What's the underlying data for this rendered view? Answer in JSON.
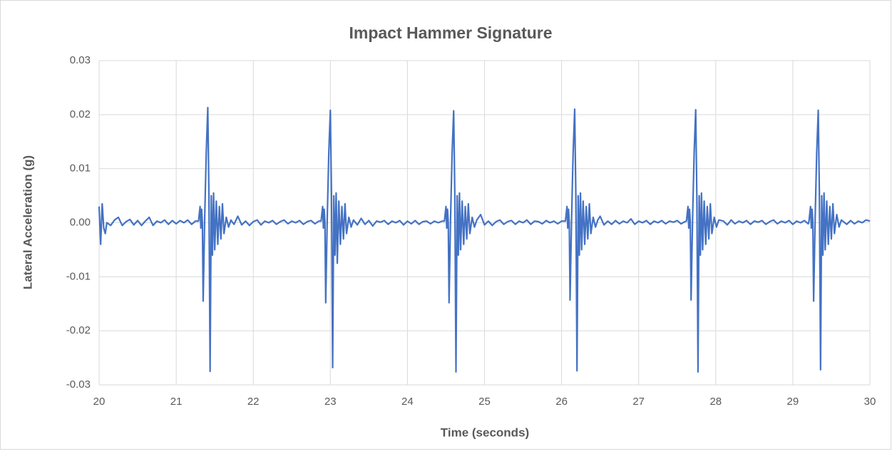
{
  "chart_data": {
    "type": "line",
    "title": "Impact Hammer Signature",
    "x_label": "Time (seconds)",
    "y_label": "Lateral Acceleration (g)",
    "xlim": [
      20,
      30
    ],
    "xticks": [
      20,
      21,
      22,
      23,
      24,
      25,
      26,
      27,
      28,
      29,
      30
    ],
    "ylim": [
      -0.03,
      0.03
    ],
    "yticks": [
      -0.03,
      -0.02,
      -0.01,
      {
        "value": 0,
        "label": "0.00"
      },
      0.01,
      0.02,
      0.03
    ],
    "grid": true,
    "color": "#4472c4",
    "x": [
      20.0,
      20.02,
      20.04,
      20.06,
      20.08,
      20.1,
      20.15,
      20.2,
      20.25,
      20.3,
      20.35,
      20.4,
      20.45,
      20.5,
      20.55,
      20.6,
      20.65,
      20.7,
      20.75,
      20.8,
      20.85,
      20.9,
      20.95,
      21.0,
      21.05,
      21.1,
      21.15,
      21.2,
      21.25,
      21.29,
      21.31,
      21.32,
      21.33,
      21.34,
      21.35,
      21.37,
      21.39,
      21.41,
      21.425,
      21.44,
      21.455,
      21.47,
      21.485,
      21.5,
      21.52,
      21.54,
      21.56,
      21.58,
      21.6,
      21.62,
      21.65,
      21.68,
      21.71,
      21.75,
      21.8,
      21.85,
      21.9,
      21.95,
      22.0,
      22.05,
      22.1,
      22.15,
      22.2,
      22.25,
      22.3,
      22.35,
      22.4,
      22.45,
      22.5,
      22.55,
      22.6,
      22.65,
      22.7,
      22.75,
      22.8,
      22.85,
      22.88,
      22.9,
      22.91,
      22.92,
      22.93,
      22.94,
      22.96,
      22.98,
      23.0,
      23.015,
      23.03,
      23.045,
      23.06,
      23.075,
      23.09,
      23.11,
      23.13,
      23.15,
      23.17,
      23.19,
      23.21,
      23.24,
      23.27,
      23.3,
      23.35,
      23.4,
      23.45,
      23.5,
      23.55,
      23.6,
      23.65,
      23.7,
      23.75,
      23.8,
      23.85,
      23.9,
      23.95,
      24.0,
      24.05,
      24.1,
      24.15,
      24.2,
      24.25,
      24.3,
      24.35,
      24.4,
      24.45,
      24.48,
      24.5,
      24.51,
      24.52,
      24.53,
      24.54,
      24.56,
      24.58,
      24.6,
      24.615,
      24.63,
      24.645,
      24.66,
      24.675,
      24.69,
      24.71,
      24.73,
      24.75,
      24.77,
      24.79,
      24.81,
      24.84,
      24.87,
      24.9,
      24.95,
      25.0,
      25.05,
      25.1,
      25.15,
      25.2,
      25.25,
      25.3,
      25.35,
      25.4,
      25.45,
      25.5,
      25.55,
      25.6,
      25.65,
      25.7,
      25.75,
      25.8,
      25.85,
      25.9,
      25.95,
      26.0,
      26.05,
      26.07,
      26.08,
      26.09,
      26.1,
      26.11,
      26.13,
      26.15,
      26.17,
      26.185,
      26.2,
      26.215,
      26.23,
      26.245,
      26.26,
      26.28,
      26.3,
      26.32,
      26.34,
      26.36,
      26.38,
      26.41,
      26.44,
      26.47,
      26.5,
      26.55,
      26.6,
      26.65,
      26.7,
      26.75,
      26.8,
      26.85,
      26.9,
      26.95,
      27.0,
      27.05,
      27.1,
      27.15,
      27.2,
      27.25,
      27.3,
      27.35,
      27.4,
      27.45,
      27.5,
      27.55,
      27.6,
      27.62,
      27.64,
      27.65,
      27.66,
      27.67,
      27.68,
      27.7,
      27.72,
      27.74,
      27.755,
      27.77,
      27.785,
      27.8,
      27.815,
      27.83,
      27.85,
      27.87,
      27.89,
      27.91,
      27.93,
      27.95,
      27.98,
      28.01,
      28.04,
      28.1,
      28.15,
      28.2,
      28.25,
      28.3,
      28.35,
      28.4,
      28.45,
      28.5,
      28.55,
      28.6,
      28.65,
      28.7,
      28.75,
      28.8,
      28.85,
      28.9,
      28.95,
      29.0,
      29.05,
      29.1,
      29.15,
      29.2,
      29.21,
      29.23,
      29.24,
      29.25,
      29.26,
      29.27,
      29.29,
      29.31,
      29.33,
      29.345,
      29.36,
      29.375,
      29.39,
      29.405,
      29.42,
      29.44,
      29.46,
      29.48,
      29.5,
      29.52,
      29.54,
      29.57,
      29.6,
      29.63,
      29.7,
      29.75,
      29.8,
      29.85,
      29.9,
      29.95,
      30.0
    ],
    "values": [
      0.003,
      -0.004,
      0.0035,
      -0.001,
      -0.002,
      0.0,
      -0.0005,
      0.0005,
      0.001,
      -0.0005,
      0.0002,
      0.0006,
      -0.0004,
      0.0004,
      -0.0005,
      0.0003,
      0.001,
      -0.0005,
      0.0003,
      0.0,
      0.0005,
      -0.0003,
      0.0004,
      -0.0002,
      0.0004,
      0.0,
      0.0005,
      -0.0003,
      0.0003,
      0.0003,
      0.003,
      -0.001,
      0.0025,
      0.0,
      -0.0145,
      0.001,
      0.013,
      0.0213,
      0.005,
      -0.0275,
      0.005,
      -0.006,
      0.0055,
      -0.005,
      0.004,
      -0.004,
      0.003,
      -0.003,
      0.0035,
      -0.002,
      0.001,
      -0.0008,
      0.0005,
      -0.0003,
      0.0012,
      -0.0004,
      0.0003,
      -0.0005,
      0.0002,
      0.0005,
      -0.0004,
      0.0003,
      0.0,
      0.0004,
      -0.0003,
      0.0002,
      0.0005,
      -0.0002,
      0.0003,
      0.0,
      0.0004,
      -0.0003,
      0.0002,
      0.0004,
      -0.0002,
      0.0003,
      0.0003,
      0.003,
      -0.001,
      0.0025,
      0.0,
      -0.0148,
      0.001,
      0.013,
      0.0208,
      0.005,
      -0.0268,
      0.005,
      -0.006,
      0.0055,
      -0.0075,
      0.004,
      -0.004,
      0.003,
      -0.003,
      0.0035,
      -0.002,
      0.001,
      -0.0008,
      0.0005,
      -0.0004,
      0.0008,
      -0.0003,
      0.0004,
      -0.0006,
      0.0003,
      0.0001,
      0.0004,
      -0.0003,
      0.0003,
      0.0,
      0.0004,
      -0.0004,
      0.0003,
      -0.0002,
      0.0004,
      -0.0003,
      0.0002,
      0.0003,
      -0.0002,
      0.0003,
      0.0,
      0.0003,
      0.0003,
      0.003,
      -0.001,
      0.0025,
      0.0,
      -0.0148,
      0.001,
      0.013,
      0.0207,
      0.005,
      -0.0276,
      0.005,
      -0.006,
      0.0055,
      -0.005,
      0.004,
      -0.004,
      0.003,
      -0.003,
      0.0035,
      -0.002,
      0.001,
      -0.0008,
      0.0005,
      0.0015,
      -0.0004,
      0.0003,
      -0.0005,
      0.0002,
      0.0005,
      -0.0003,
      0.0002,
      0.0004,
      -0.0003,
      0.0003,
      0.0,
      0.0005,
      -0.0003,
      0.0003,
      0.0002,
      -0.0002,
      0.0004,
      0.0,
      0.0003,
      -0.0002,
      0.0003,
      0.0003,
      0.003,
      -0.001,
      0.0025,
      0.0,
      -0.0143,
      0.001,
      0.013,
      0.021,
      0.005,
      -0.0274,
      0.005,
      -0.006,
      0.0055,
      -0.005,
      0.004,
      -0.004,
      0.003,
      -0.003,
      0.0035,
      -0.002,
      0.001,
      -0.0008,
      0.0005,
      0.0012,
      -0.0004,
      0.0003,
      -0.0003,
      0.0004,
      -0.0002,
      0.0003,
      0.0,
      0.0007,
      -0.0003,
      0.0003,
      0.0,
      0.0004,
      -0.0003,
      0.0003,
      0.0,
      0.0004,
      -0.0002,
      0.0003,
      0.0001,
      0.0004,
      -0.0002,
      0.0002,
      0.0003,
      0.003,
      -0.001,
      0.0025,
      0.0,
      -0.0143,
      0.001,
      0.013,
      0.0209,
      0.005,
      -0.0276,
      0.005,
      -0.006,
      0.0055,
      -0.005,
      0.004,
      -0.004,
      0.003,
      -0.003,
      0.0035,
      -0.002,
      0.001,
      -0.0008,
      0.0005,
      0.0003,
      -0.0004,
      0.0005,
      -0.0002,
      0.0003,
      0.0,
      0.0004,
      -0.0003,
      0.0003,
      0.0001,
      0.0004,
      -0.0003,
      0.0002,
      0.0005,
      -0.0002,
      0.0003,
      0.0,
      0.0004,
      -0.0003,
      0.0003,
      0.0,
      0.0004,
      -0.0002,
      0.0003,
      0.003,
      -0.001,
      0.0025,
      0.0,
      -0.0145,
      0.001,
      0.013,
      0.0208,
      0.005,
      -0.0272,
      0.005,
      -0.006,
      0.0055,
      -0.005,
      0.004,
      -0.004,
      0.003,
      -0.003,
      0.0035,
      -0.002,
      0.0015,
      -0.0008,
      0.0005,
      -0.0003,
      0.0004,
      -0.0002,
      0.0003,
      0.0,
      0.0005,
      0.0003
    ]
  }
}
